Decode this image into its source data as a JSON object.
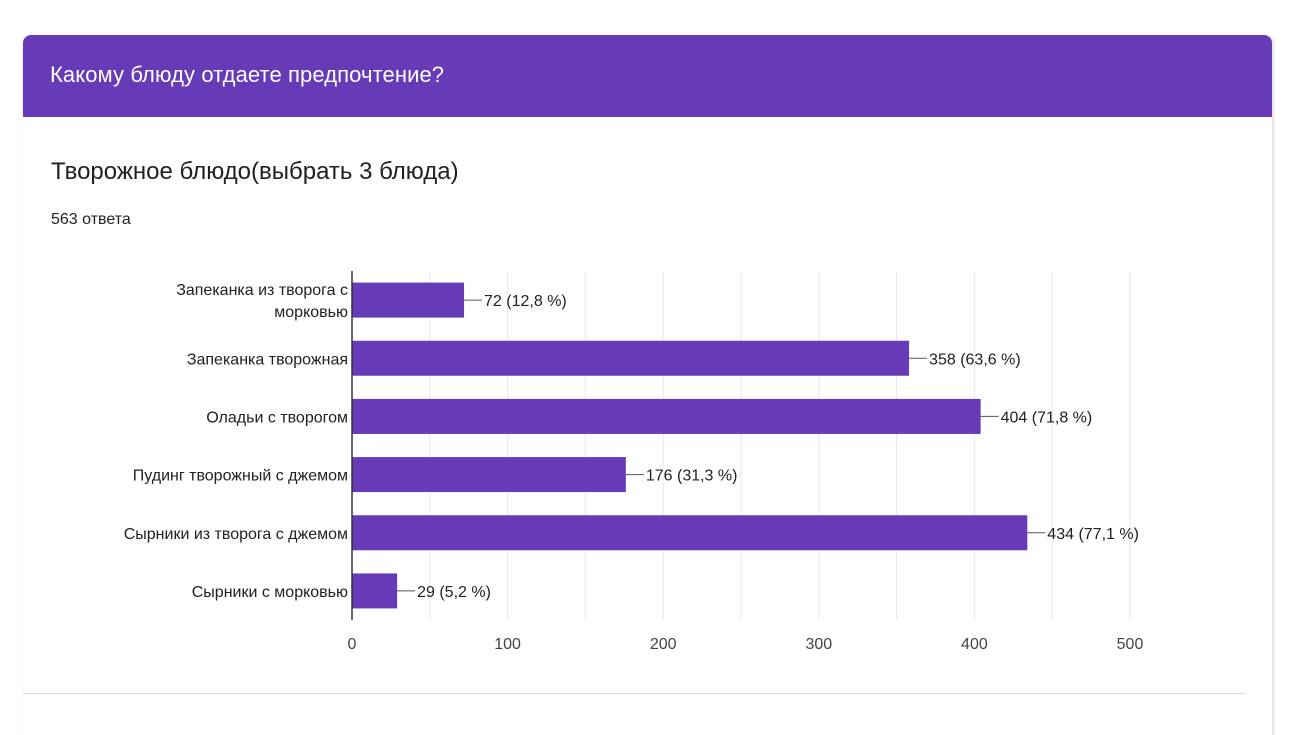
{
  "header": {
    "title": "Какому блюду отдаете предпочтение?"
  },
  "question": {
    "title": "Творожное блюдо(выбрать 3 блюда)",
    "response_count": "563 ответа"
  },
  "colors": {
    "accent": "#673ab7",
    "bar": "#673ab7",
    "grid": "#e8e8e8",
    "axis": "#333333",
    "text": "#202124"
  },
  "chart_data": {
    "type": "bar",
    "orientation": "horizontal",
    "title": "",
    "xlabel": "",
    "ylabel": "",
    "xlim": [
      0,
      500
    ],
    "ticks": [
      0,
      100,
      200,
      300,
      400,
      500
    ],
    "grid": true,
    "categories": [
      [
        "Запеканка из творога с",
        "морковью"
      ],
      [
        "Запеканка творожная"
      ],
      [
        "Оладьи с творогом"
      ],
      [
        "Пудинг творожный с джемом"
      ],
      [
        "Сырники из творога с джемом"
      ],
      [
        "Сырники с морковью"
      ]
    ],
    "values": [
      72,
      358,
      404,
      176,
      434,
      29
    ],
    "data_labels": [
      "72 (12,8 %)",
      "358 (63,6 %)",
      "404 (71,8 %)",
      "176 (31,3 %)",
      "434 (77,1 %)",
      "29 (5,2 %)"
    ]
  }
}
